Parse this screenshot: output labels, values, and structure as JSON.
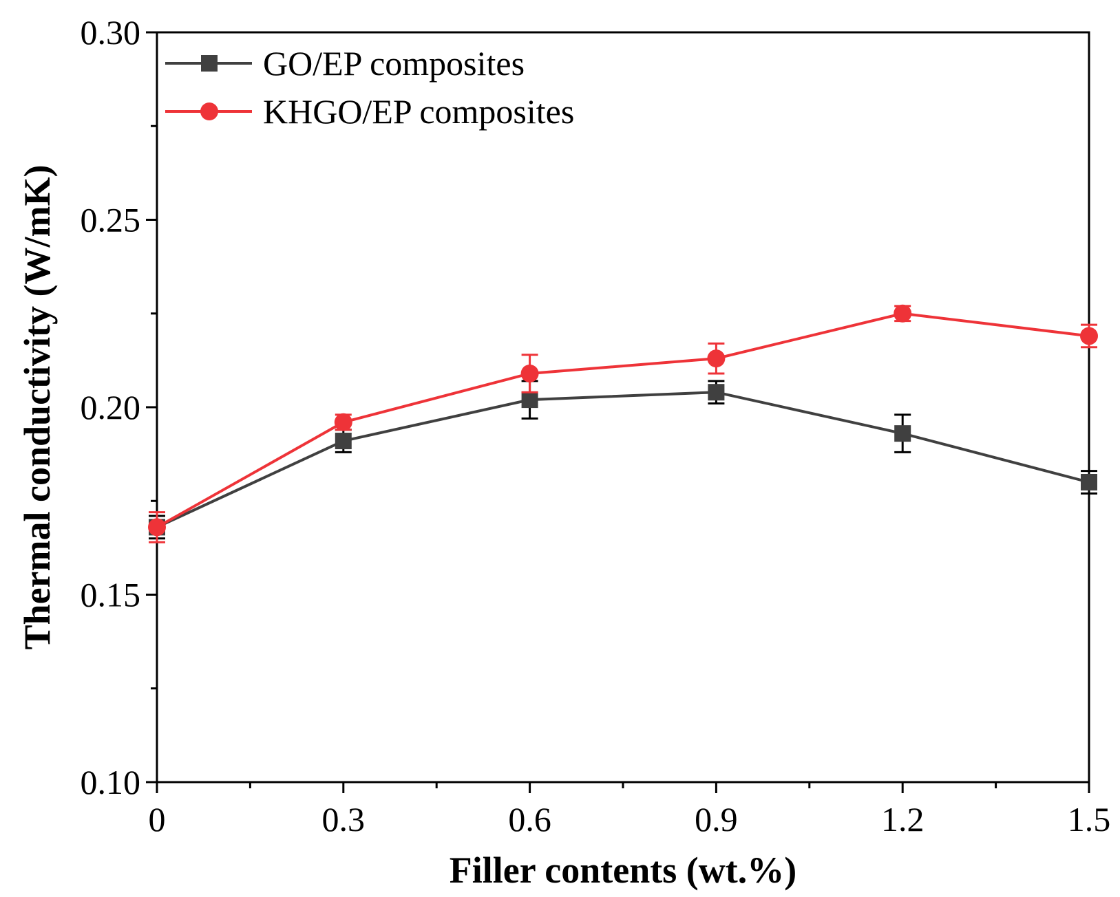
{
  "chart_data": {
    "type": "line",
    "title": "",
    "xlabel": "Filler contents (wt.%)",
    "ylabel": "Thermal conductivity (W/mK)",
    "x": [
      0,
      0.3,
      0.6,
      0.9,
      1.2,
      1.5
    ],
    "x_tick_labels": [
      "0",
      "0.3",
      "0.6",
      "0.9",
      "1.2",
      "1.5"
    ],
    "y_tick_values": [
      0.1,
      0.15,
      0.2,
      0.25,
      0.3
    ],
    "y_tick_labels": [
      "0.10",
      "0.15",
      "0.20",
      "0.25",
      "0.30"
    ],
    "xlim": [
      0,
      1.5
    ],
    "ylim": [
      0.1,
      0.3
    ],
    "grid": false,
    "legend_position": "top-left",
    "series": [
      {
        "name": "GO/EP composites",
        "color": "#404040",
        "error_color": "#000000",
        "marker": "square",
        "values": [
          0.168,
          0.191,
          0.202,
          0.204,
          0.193,
          0.18
        ],
        "errors": [
          0.003,
          0.003,
          0.005,
          0.003,
          0.005,
          0.003
        ]
      },
      {
        "name": "KHGO/EP composites",
        "color": "#ee3338",
        "error_color": "#ee3338",
        "marker": "circle",
        "values": [
          0.168,
          0.196,
          0.209,
          0.213,
          0.225,
          0.219
        ],
        "errors": [
          0.004,
          0.002,
          0.005,
          0.004,
          0.002,
          0.003
        ]
      }
    ]
  }
}
